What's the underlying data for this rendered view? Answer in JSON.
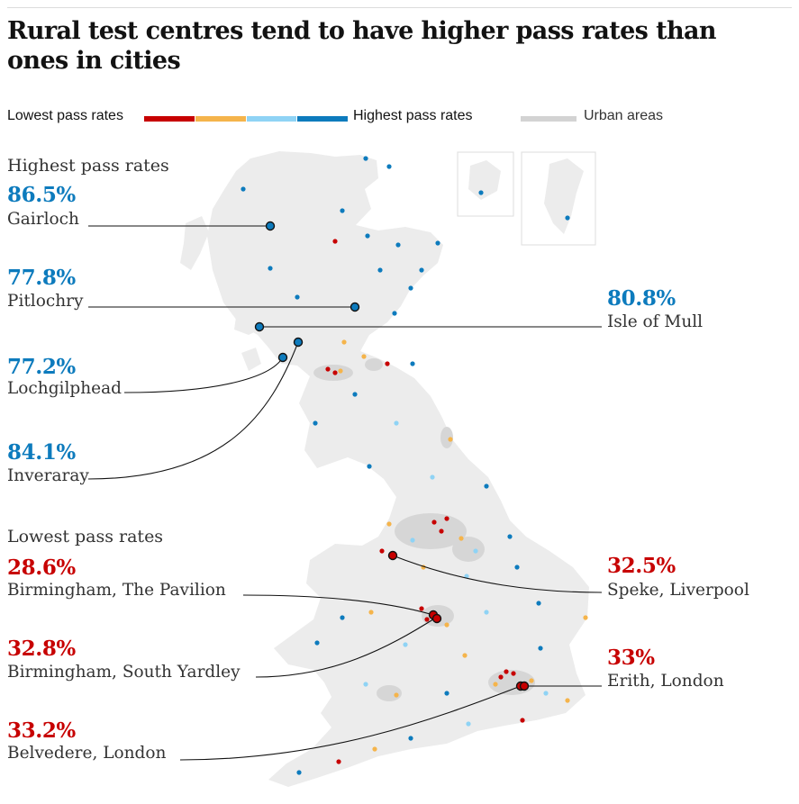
{
  "title": "Rural test centres tend to have higher pass rates than ones in cities",
  "legend": {
    "low_label": "Lowest pass rates",
    "high_label": "Highest pass rates",
    "urban_label": "Urban areas",
    "scale_colors": [
      "#c70000",
      "#f5b44b",
      "#8fd3f5",
      "#0d7bbd"
    ],
    "urban_color": "#d3d3d3"
  },
  "highest": {
    "heading": "Highest pass rates",
    "items": [
      {
        "pct": "86.5%",
        "name": "Gairloch"
      },
      {
        "pct": "77.8%",
        "name": "Pitlochry"
      },
      {
        "pct": "77.2%",
        "name": "Lochgilphead"
      },
      {
        "pct": "84.1%",
        "name": "Inveraray"
      },
      {
        "pct": "80.8%",
        "name": "Isle of Mull"
      }
    ]
  },
  "lowest": {
    "heading": "Lowest pass rates",
    "items": [
      {
        "pct": "28.6%",
        "name": "Birmingham, The Pavilion"
      },
      {
        "pct": "32.8%",
        "name": "Birmingham, South Yardley"
      },
      {
        "pct": "33.2%",
        "name": "Belvedere, London"
      },
      {
        "pct": "32.5%",
        "name": "Speke, Liverpool"
      },
      {
        "pct": "33%",
        "name": "Erith, London"
      }
    ]
  }
}
